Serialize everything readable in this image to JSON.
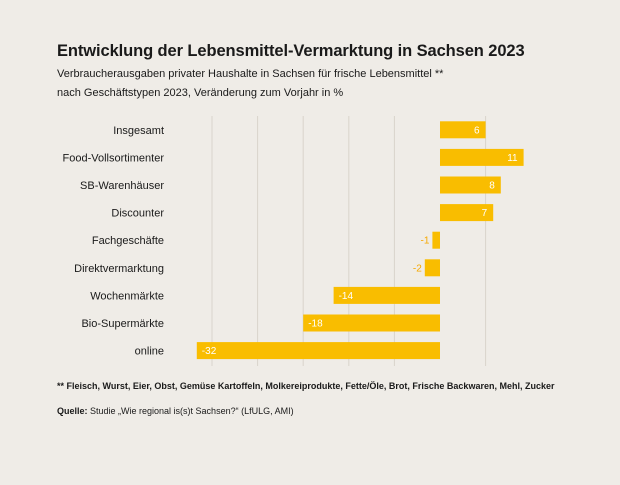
{
  "title": "Entwicklung der Lebensmittel-Vermarktung in Sachsen 2023",
  "subtitle_line1": "Verbraucherausgaben privater Haushalte in Sachsen für frische Lebensmittel **",
  "subtitle_line2": "nach Geschäftstypen 2023, Veränderung zum Vorjahr in %",
  "footnote": "** Fleisch, Wurst, Eier, Obst, Gemüse Kartoffeln, Molkereiprodukte, Fette/Öle, Brot, Frische Backwaren, Mehl, Zucker",
  "source_label": "Quelle:",
  "source_text": " Studie „Wie regional is(s)t Sachsen?“ (LfULG, AMI)",
  "colors": {
    "bar": "#f9bd00",
    "negative_label": "#f5a800",
    "positive_label": "#ffffff",
    "grid": "#d9d4cc"
  },
  "chart_data": {
    "type": "bar",
    "orientation": "horizontal",
    "categories": [
      "Insgesamt",
      "Food-Vollsortimenter",
      "SB-Warenhäuser",
      "Discounter",
      "Fachgeschäfte",
      "Direktvermarktung",
      "Wochenmärkte",
      "Bio-Supermärkte",
      "online"
    ],
    "values": [
      6,
      11,
      8,
      7,
      -1,
      -2,
      -14,
      -18,
      -32
    ],
    "value_labels": [
      "6",
      "11",
      "8",
      "7",
      "-1",
      "-2",
      "-14",
      "-18",
      "-32"
    ],
    "xlim": [
      -32,
      11
    ],
    "grid_step": 6,
    "unit": "%"
  }
}
